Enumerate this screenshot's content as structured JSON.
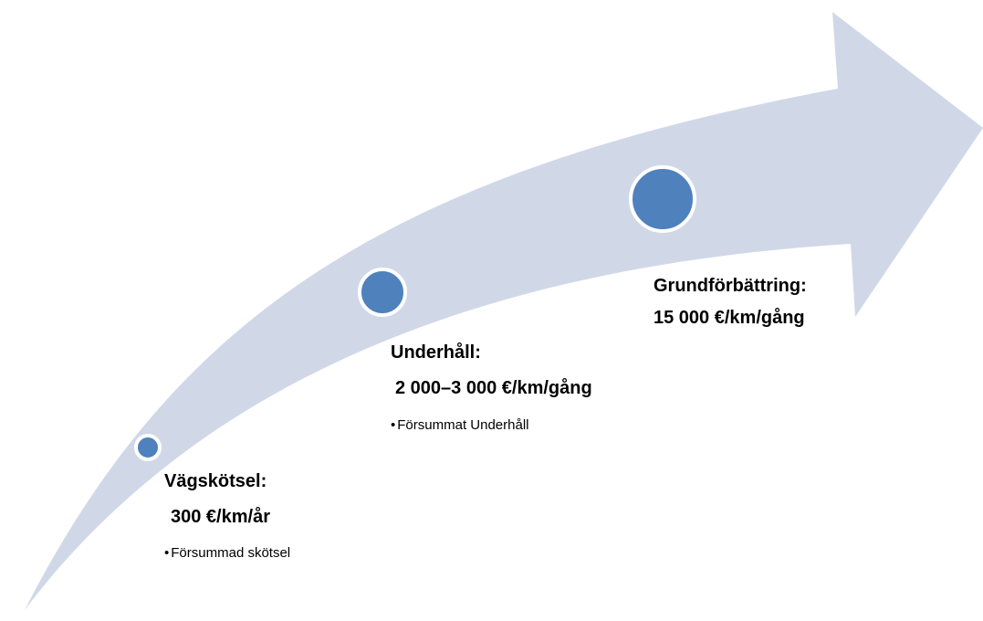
{
  "colors": {
    "arrow": "#d0d8e8",
    "node_fill": "#4f81bd",
    "node_stroke": "#ffffff"
  },
  "stages": [
    {
      "title": "Vägskötsel:",
      "amount": "300 €/km/år",
      "bullet": "Försummad skötsel"
    },
    {
      "title": "Underhåll:",
      "amount": "2 000–3 000 €/km/gång",
      "bullet": "Försummat Underhåll"
    },
    {
      "title": "Grundförbättring:",
      "amount": "15 000 €/km/gång",
      "bullet": ""
    }
  ],
  "bullet_symbol": "•"
}
